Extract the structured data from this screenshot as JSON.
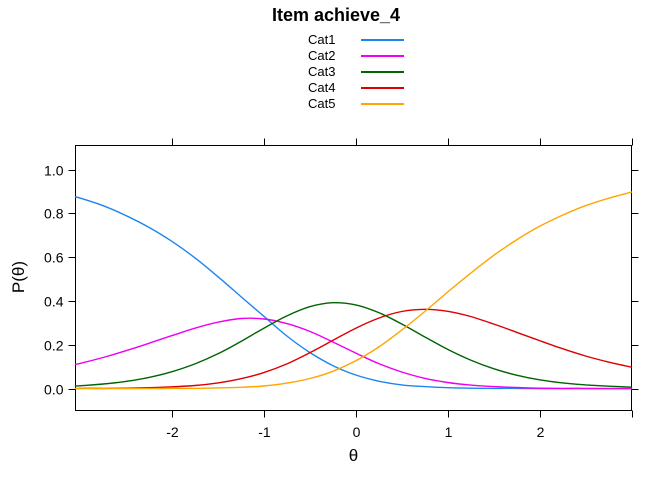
{
  "title": "Item achieve_4",
  "chart_data": {
    "type": "line",
    "title": "Item achieve_4",
    "xlabel": "θ",
    "ylabel": "P(θ)",
    "grid": false,
    "legend_position": "top-center",
    "xlim": [
      -3.05,
      3.0
    ],
    "ylim": [
      -0.1,
      1.11
    ],
    "x_ticks": [
      -2,
      -1,
      0,
      1,
      2
    ],
    "x_tick_labels": [
      "-2",
      "-1",
      "0",
      "1",
      "2"
    ],
    "x_ticks_unlabeled": [
      3
    ],
    "y_ticks": [
      0.0,
      0.2,
      0.4,
      0.6,
      0.8,
      1.0
    ],
    "y_tick_labels": [
      "0.0",
      "0.2",
      "0.4",
      "0.6",
      "0.8",
      "1.0"
    ],
    "x": [
      -3.05,
      -3.0,
      -2.75,
      -2.5,
      -2.25,
      -2.0,
      -1.75,
      -1.5,
      -1.25,
      -1.0,
      -0.75,
      -0.5,
      -0.25,
      0.0,
      0.25,
      0.5,
      0.75,
      1.0,
      1.25,
      1.5,
      1.75,
      2.0,
      2.25,
      2.5,
      2.75,
      3.0
    ],
    "series": [
      {
        "name": "Cat1",
        "color": "#1C86EE",
        "values": [
          0.875,
          0.87,
          0.835,
          0.79,
          0.736,
          0.672,
          0.597,
          0.511,
          0.42,
          0.33,
          0.24,
          0.165,
          0.105,
          0.062,
          0.034,
          0.017,
          0.009,
          0.004,
          0.002,
          0.001,
          0.001,
          0.0,
          0.0,
          0.0,
          0.0,
          0.0
        ]
      },
      {
        "name": "Cat2",
        "color": "#EE00EE",
        "values": [
          0.111,
          0.115,
          0.142,
          0.173,
          0.207,
          0.242,
          0.276,
          0.303,
          0.32,
          0.318,
          0.297,
          0.261,
          0.213,
          0.162,
          0.114,
          0.076,
          0.047,
          0.028,
          0.016,
          0.009,
          0.005,
          0.002,
          0.001,
          0.001,
          0.0,
          0.0
        ]
      },
      {
        "name": "Cat3",
        "color": "#006400",
        "values": [
          0.012,
          0.013,
          0.021,
          0.033,
          0.051,
          0.077,
          0.113,
          0.159,
          0.215,
          0.276,
          0.332,
          0.374,
          0.392,
          0.382,
          0.347,
          0.295,
          0.236,
          0.179,
          0.13,
          0.091,
          0.061,
          0.04,
          0.026,
          0.017,
          0.011,
          0.007
        ]
      },
      {
        "name": "Cat4",
        "color": "#DD0000",
        "values": [
          0.0,
          0.001,
          0.001,
          0.002,
          0.004,
          0.008,
          0.014,
          0.026,
          0.045,
          0.073,
          0.113,
          0.164,
          0.22,
          0.276,
          0.322,
          0.352,
          0.362,
          0.353,
          0.329,
          0.295,
          0.257,
          0.219,
          0.182,
          0.149,
          0.121,
          0.098
        ]
      },
      {
        "name": "Cat5",
        "color": "#FFA500",
        "values": [
          0.0,
          0.0,
          0.0,
          0.0,
          0.0,
          0.001,
          0.001,
          0.003,
          0.006,
          0.012,
          0.025,
          0.046,
          0.079,
          0.127,
          0.19,
          0.267,
          0.352,
          0.441,
          0.527,
          0.608,
          0.679,
          0.741,
          0.792,
          0.835,
          0.869,
          0.897
        ]
      }
    ]
  }
}
